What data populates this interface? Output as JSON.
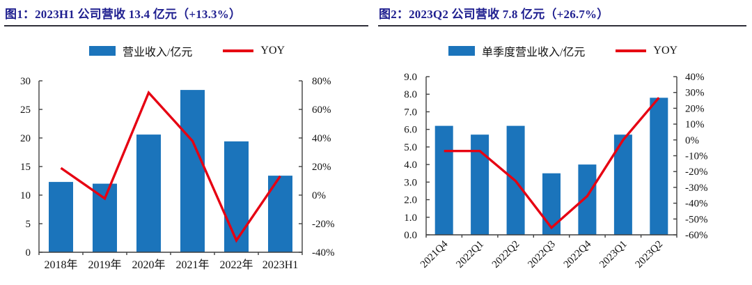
{
  "colors": {
    "bar": "#1b74bb",
    "line": "#e60012",
    "title": "#1e1e8f",
    "rule": "#2e2e38",
    "axis": "#3f3f3f",
    "text": "#111111"
  },
  "chart_data": [
    {
      "type": "bar+line combo",
      "title": "图1：2023H1 公司营收 13.4 亿元（+13.3%）",
      "categories": [
        "2018年",
        "2019年",
        "2020年",
        "2021年",
        "2022年",
        "2023H1"
      ],
      "series": [
        {
          "name": "营业收入/亿元",
          "type": "bar",
          "axis": "left",
          "values": [
            12.3,
            12.0,
            20.6,
            28.4,
            19.4,
            13.4
          ]
        },
        {
          "name": "YOY",
          "type": "line",
          "axis": "right",
          "values": [
            19,
            -2.4,
            71.7,
            37.9,
            -31.7,
            13.3
          ]
        }
      ],
      "left_axis": {
        "min": 0,
        "max": 30,
        "labels": [
          "0",
          "5",
          "10",
          "15",
          "20",
          "25",
          "30"
        ]
      },
      "right_axis": {
        "min": -40,
        "max": 80,
        "labels": [
          "-40%",
          "-20%",
          "0%",
          "20%",
          "40%",
          "60%",
          "80%"
        ]
      },
      "legend_position": "top",
      "grid": false,
      "x_label_rotation": 0
    },
    {
      "type": "bar+line combo",
      "title": "图2：2023Q2 公司营收 7.8 亿元（+26.7%）",
      "categories": [
        "2021Q4",
        "2022Q1",
        "2022Q2",
        "2022Q3",
        "2022Q4",
        "2023Q1",
        "2023Q2"
      ],
      "series": [
        {
          "name": "单季度营业收入/亿元",
          "type": "bar",
          "axis": "left",
          "values": [
            6.2,
            5.7,
            6.2,
            3.5,
            4.0,
            5.7,
            7.8
          ]
        },
        {
          "name": "YOY",
          "type": "line",
          "axis": "right",
          "values": [
            -7,
            -7,
            -26,
            -55.5,
            -35.5,
            0,
            26.7
          ]
        }
      ],
      "left_axis": {
        "min": 0,
        "max": 9,
        "labels": [
          "0.0",
          "1.0",
          "2.0",
          "3.0",
          "4.0",
          "5.0",
          "6.0",
          "7.0",
          "8.0",
          "9.0"
        ]
      },
      "right_axis": {
        "min": -60,
        "max": 40,
        "labels": [
          "-60%",
          "-50%",
          "-40%",
          "-30%",
          "-20%",
          "-10%",
          "0%",
          "10%",
          "20%",
          "30%",
          "40%"
        ]
      },
      "legend_position": "top",
      "grid": false,
      "x_label_rotation": -45
    }
  ]
}
